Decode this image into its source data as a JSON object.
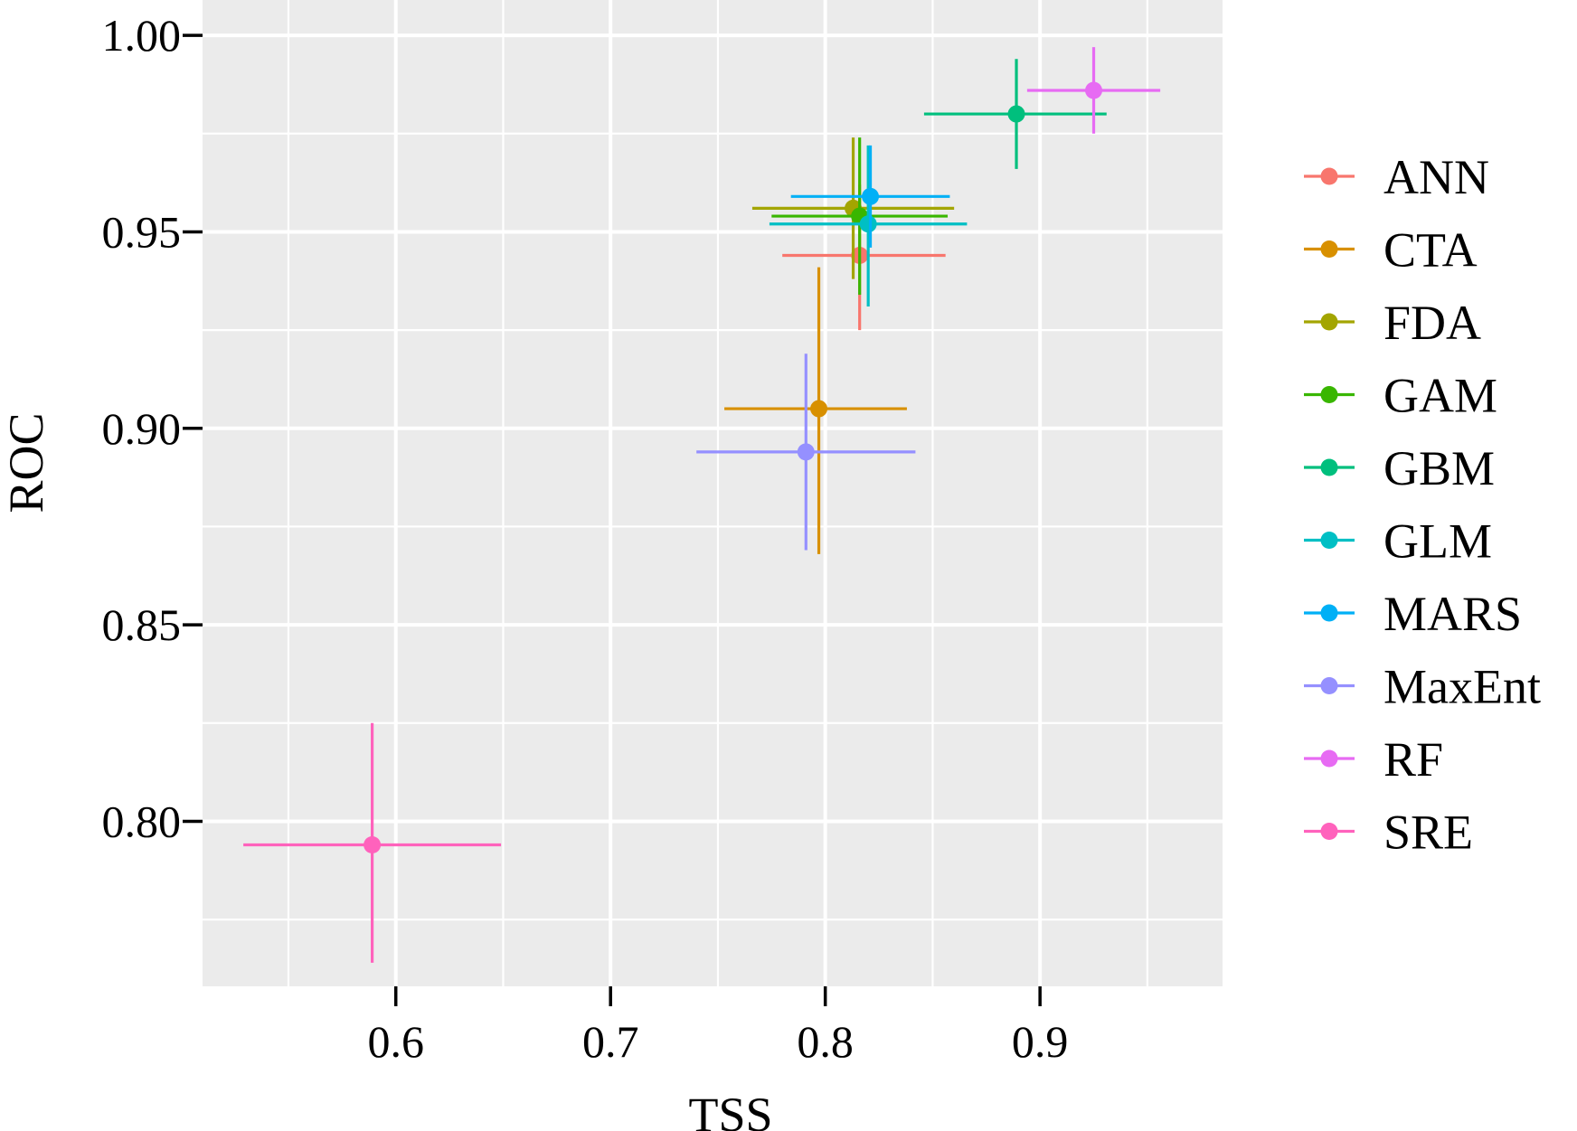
{
  "chart_data": {
    "type": "scatter",
    "xlabel": "TSS",
    "ylabel": "ROC",
    "xlim": [
      0.51,
      0.985
    ],
    "ylim": [
      0.758,
      1.009
    ],
    "x_ticks": [
      {
        "value": 0.6,
        "label": "0.6"
      },
      {
        "value": 0.7,
        "label": "0.7"
      },
      {
        "value": 0.8,
        "label": "0.8"
      },
      {
        "value": 0.9,
        "label": "0.9"
      }
    ],
    "y_ticks": [
      {
        "value": 0.8,
        "label": "0.80"
      },
      {
        "value": 0.85,
        "label": "0.85"
      },
      {
        "value": 0.9,
        "label": "0.90"
      },
      {
        "value": 0.95,
        "label": "0.95"
      },
      {
        "value": 1.0,
        "label": "1.00"
      }
    ],
    "x_minor": [
      0.55,
      0.65,
      0.75,
      0.85,
      0.95
    ],
    "y_minor": [
      0.775,
      0.825,
      0.875,
      0.925,
      0.975
    ],
    "grid": true,
    "legend": "right",
    "panel_background": "#ebebeb",
    "series": [
      {
        "name": "ANN",
        "color": "#F8766D",
        "x": 0.816,
        "y": 0.944,
        "x_lo": 0.78,
        "x_hi": 0.856,
        "y_lo": 0.925,
        "y_hi": 0.962
      },
      {
        "name": "CTA",
        "color": "#D89000",
        "x": 0.797,
        "y": 0.905,
        "x_lo": 0.753,
        "x_hi": 0.838,
        "y_lo": 0.868,
        "y_hi": 0.941
      },
      {
        "name": "FDA",
        "color": "#A3A500",
        "x": 0.813,
        "y": 0.956,
        "x_lo": 0.766,
        "x_hi": 0.86,
        "y_lo": 0.938,
        "y_hi": 0.974
      },
      {
        "name": "GAM",
        "color": "#39B600",
        "x": 0.816,
        "y": 0.954,
        "x_lo": 0.775,
        "x_hi": 0.857,
        "y_lo": 0.934,
        "y_hi": 0.974
      },
      {
        "name": "GBM",
        "color": "#00BF7D",
        "x": 0.889,
        "y": 0.98,
        "x_lo": 0.846,
        "x_hi": 0.931,
        "y_lo": 0.966,
        "y_hi": 0.994
      },
      {
        "name": "GLM",
        "color": "#00BFC4",
        "x": 0.82,
        "y": 0.952,
        "x_lo": 0.774,
        "x_hi": 0.866,
        "y_lo": 0.931,
        "y_hi": 0.972
      },
      {
        "name": "MARS",
        "color": "#00B0F6",
        "x": 0.821,
        "y": 0.959,
        "x_lo": 0.784,
        "x_hi": 0.858,
        "y_lo": 0.946,
        "y_hi": 0.972
      },
      {
        "name": "MaxEnt",
        "color": "#9590FF",
        "x": 0.791,
        "y": 0.894,
        "x_lo": 0.74,
        "x_hi": 0.842,
        "y_lo": 0.869,
        "y_hi": 0.919
      },
      {
        "name": "RF",
        "color": "#E76BF3",
        "x": 0.925,
        "y": 0.986,
        "x_lo": 0.894,
        "x_hi": 0.956,
        "y_lo": 0.975,
        "y_hi": 0.997
      },
      {
        "name": "SRE",
        "color": "#FF62BC",
        "x": 0.589,
        "y": 0.794,
        "x_lo": 0.529,
        "x_hi": 0.649,
        "y_lo": 0.764,
        "y_hi": 0.825
      }
    ]
  }
}
